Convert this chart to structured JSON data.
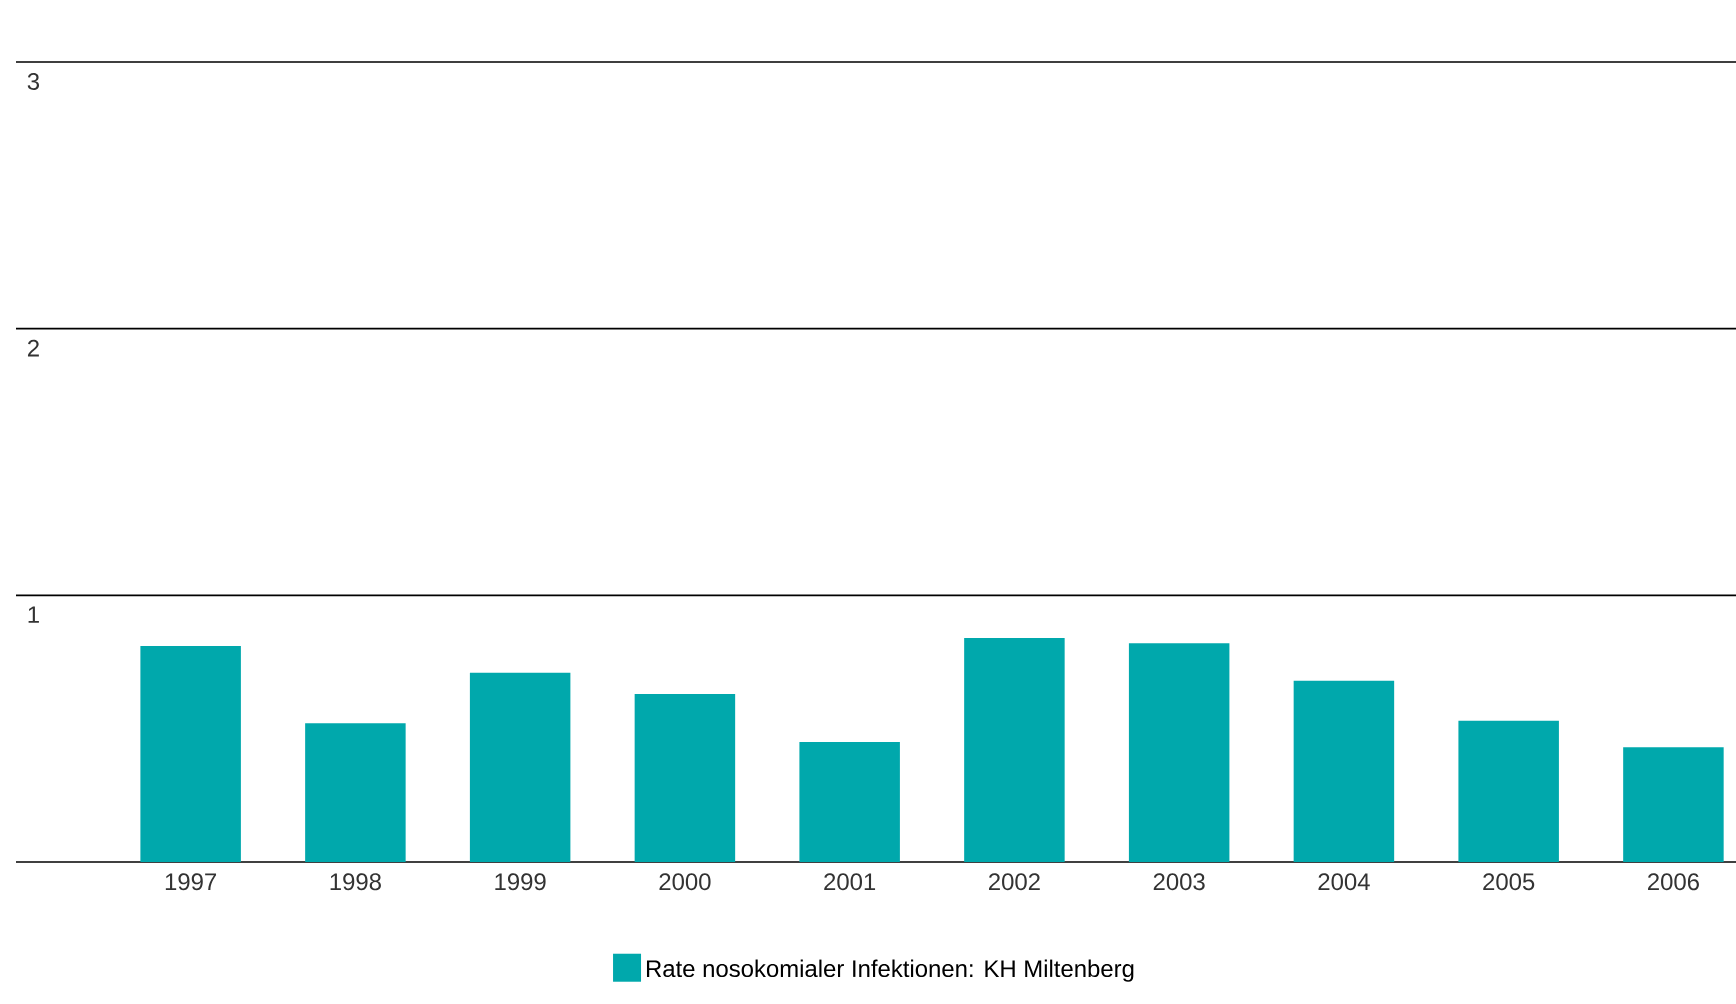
{
  "chart_data": {
    "type": "bar",
    "categories": [
      "1997",
      "1998",
      "1999",
      "2000",
      "2001",
      "2002",
      "2003",
      "2004",
      "2005",
      "2006"
    ],
    "series": [
      {
        "name": "Rate nosokomialer Infektionen: KH Miltenberg",
        "color": "#00a8ac",
        "values": [
          0.81,
          0.52,
          0.71,
          0.63,
          0.45,
          0.84,
          0.82,
          0.68,
          0.53,
          0.43
        ]
      }
    ],
    "ylim": [
      0,
      3
    ],
    "yticks": [
      1,
      2,
      3
    ],
    "grid": "y",
    "legend": "bottom"
  }
}
